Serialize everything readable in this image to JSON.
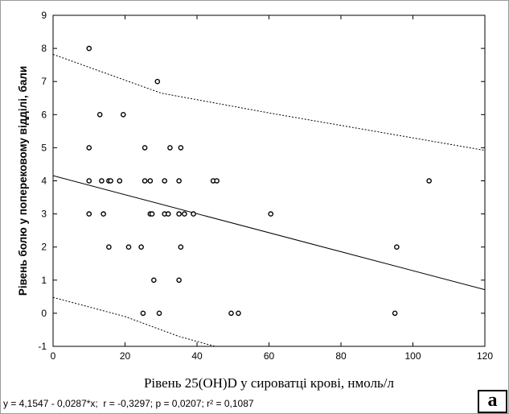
{
  "chart_data": {
    "type": "scatter",
    "xlabel": "Рівень 25(OH)D у сироватці крові, нмоль/л",
    "ylabel": "Рівень болю у поперековому відділі, бали",
    "xlim": [
      0,
      120
    ],
    "ylim": [
      -1,
      9
    ],
    "xticks": [
      "0",
      "20",
      "40",
      "60",
      "80",
      "100",
      "120"
    ],
    "yticks": [
      "-1",
      "0",
      "1",
      "2",
      "3",
      "4",
      "5",
      "6",
      "7",
      "8",
      "9"
    ],
    "grid": false,
    "points": [
      {
        "x": 10,
        "y": 8
      },
      {
        "x": 29,
        "y": 7
      },
      {
        "x": 13,
        "y": 6
      },
      {
        "x": 19.5,
        "y": 6
      },
      {
        "x": 10,
        "y": 5
      },
      {
        "x": 25.5,
        "y": 5
      },
      {
        "x": 32.5,
        "y": 5
      },
      {
        "x": 35.5,
        "y": 5
      },
      {
        "x": 10,
        "y": 4
      },
      {
        "x": 13.5,
        "y": 4
      },
      {
        "x": 15.5,
        "y": 4
      },
      {
        "x": 16,
        "y": 4
      },
      {
        "x": 18.5,
        "y": 4
      },
      {
        "x": 25.5,
        "y": 4
      },
      {
        "x": 27,
        "y": 4
      },
      {
        "x": 31,
        "y": 4
      },
      {
        "x": 35,
        "y": 4
      },
      {
        "x": 44.5,
        "y": 4
      },
      {
        "x": 45.5,
        "y": 4
      },
      {
        "x": 104.5,
        "y": 4
      },
      {
        "x": 10,
        "y": 3
      },
      {
        "x": 14,
        "y": 3
      },
      {
        "x": 27,
        "y": 3
      },
      {
        "x": 27.5,
        "y": 3
      },
      {
        "x": 31,
        "y": 3
      },
      {
        "x": 32,
        "y": 3
      },
      {
        "x": 35,
        "y": 3
      },
      {
        "x": 36.5,
        "y": 3
      },
      {
        "x": 39,
        "y": 3
      },
      {
        "x": 60.5,
        "y": 3
      },
      {
        "x": 15.5,
        "y": 2
      },
      {
        "x": 21,
        "y": 2
      },
      {
        "x": 24.5,
        "y": 2
      },
      {
        "x": 35.5,
        "y": 2
      },
      {
        "x": 95.5,
        "y": 2
      },
      {
        "x": 28,
        "y": 1
      },
      {
        "x": 35,
        "y": 1
      },
      {
        "x": 25,
        "y": 0
      },
      {
        "x": 29.5,
        "y": 0
      },
      {
        "x": 49.5,
        "y": 0
      },
      {
        "x": 51.5,
        "y": 0
      },
      {
        "x": 95,
        "y": 0
      }
    ],
    "regression": {
      "intercept": 4.1547,
      "slope": -0.0287
    },
    "confidence_upper": [
      {
        "x": 0,
        "y": 7.82
      },
      {
        "x": 30,
        "y": 6.65
      },
      {
        "x": 60,
        "y": 6.05
      },
      {
        "x": 120,
        "y": 4.92
      }
    ],
    "confidence_lower": [
      {
        "x": 0,
        "y": 0.48
      },
      {
        "x": 20,
        "y": -0.1
      },
      {
        "x": 35,
        "y": -0.7
      },
      {
        "x": 45,
        "y": -1.0
      }
    ],
    "equation": "y = 4,1547 - 0,0287*x;  r = -0,3297; p = 0,0207; r² = 0,1087",
    "panel_label": "a"
  }
}
